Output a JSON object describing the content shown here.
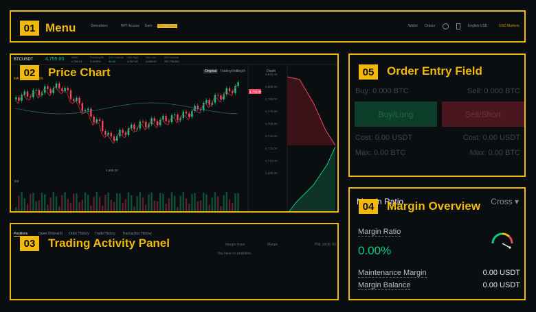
{
  "menu": {
    "badge": "01",
    "title": "Menu",
    "nav_items": [
      "Derivatives",
      "NFT Access",
      "Earn",
      "Buy Crypto"
    ],
    "nav_highlight_index": 3,
    "right_items": [
      "Wallet",
      "Orders",
      "English USD",
      "USD Markets"
    ]
  },
  "chart": {
    "badge": "02",
    "title": "Price Chart",
    "symbol": "BTCUSDT",
    "last_price": "4,755.00",
    "stats": [
      {
        "label": "Mark",
        "value": "4,755.01"
      },
      {
        "label": "Funding/8h",
        "value": "0.0100%"
      },
      {
        "label": "24h Change",
        "value": "36.40"
      },
      {
        "label": "24h High",
        "value": "4,767.03"
      },
      {
        "label": "24h Low",
        "value": "4,695.00"
      },
      {
        "label": "24h Volume",
        "value": "287,735,511"
      }
    ],
    "view_tabs": [
      "Original",
      "TradingView",
      "Depth"
    ],
    "depth_label": "Depth",
    "price_scale": [
      "4,815.00",
      "4,800.00",
      "4,785.00",
      "4,770.00",
      "4,755.00",
      "4,740.00",
      "4,725.00",
      "4,710.00",
      "4,695.00"
    ],
    "current_price_tag": "4,755.00",
    "low_label": "4,695.00",
    "volume_label": "Vol",
    "ma_label": "MA 7 MA 25 MA 99",
    "trend_color": "#c8304a",
    "up_color": "#0ecb81",
    "down_color": "#f6465d"
  },
  "activity": {
    "badge": "03",
    "title": "Trading Activity Panel",
    "tabs": [
      "Positions",
      "Open Orders(0)",
      "Order History",
      "Trade History",
      "Transaction History"
    ],
    "columns": [
      "Margin Ratio",
      "Margin",
      "PNL (ROE %)"
    ],
    "empty_text": "You have no positions."
  },
  "order": {
    "badge": "05",
    "title": "Order Entry Field",
    "buy_label": "Buy: 0.000 BTC",
    "sell_label": "Sell: 0.000 BTC",
    "buy_button": "Buy/Long",
    "sell_button": "Sell/Short",
    "cost_left": "Cost: 0.00 USDT",
    "cost_right": "Cost: 0.00 USDT",
    "max_left": "Max: 0.00 BTC",
    "max_right": "Max: 0.00 BTC"
  },
  "margin": {
    "badge": "04",
    "title": "Margin Overview",
    "header": "Margin Ratio",
    "mode": "Cross",
    "ratio_label": "Margin Ratio",
    "ratio_value": "0.00%",
    "maintenance_label": "Maintenance Margin",
    "maintenance_value": "0.00 USDT",
    "balance_label": "Margin Balance",
    "balance_value": "0.00 USDT"
  }
}
